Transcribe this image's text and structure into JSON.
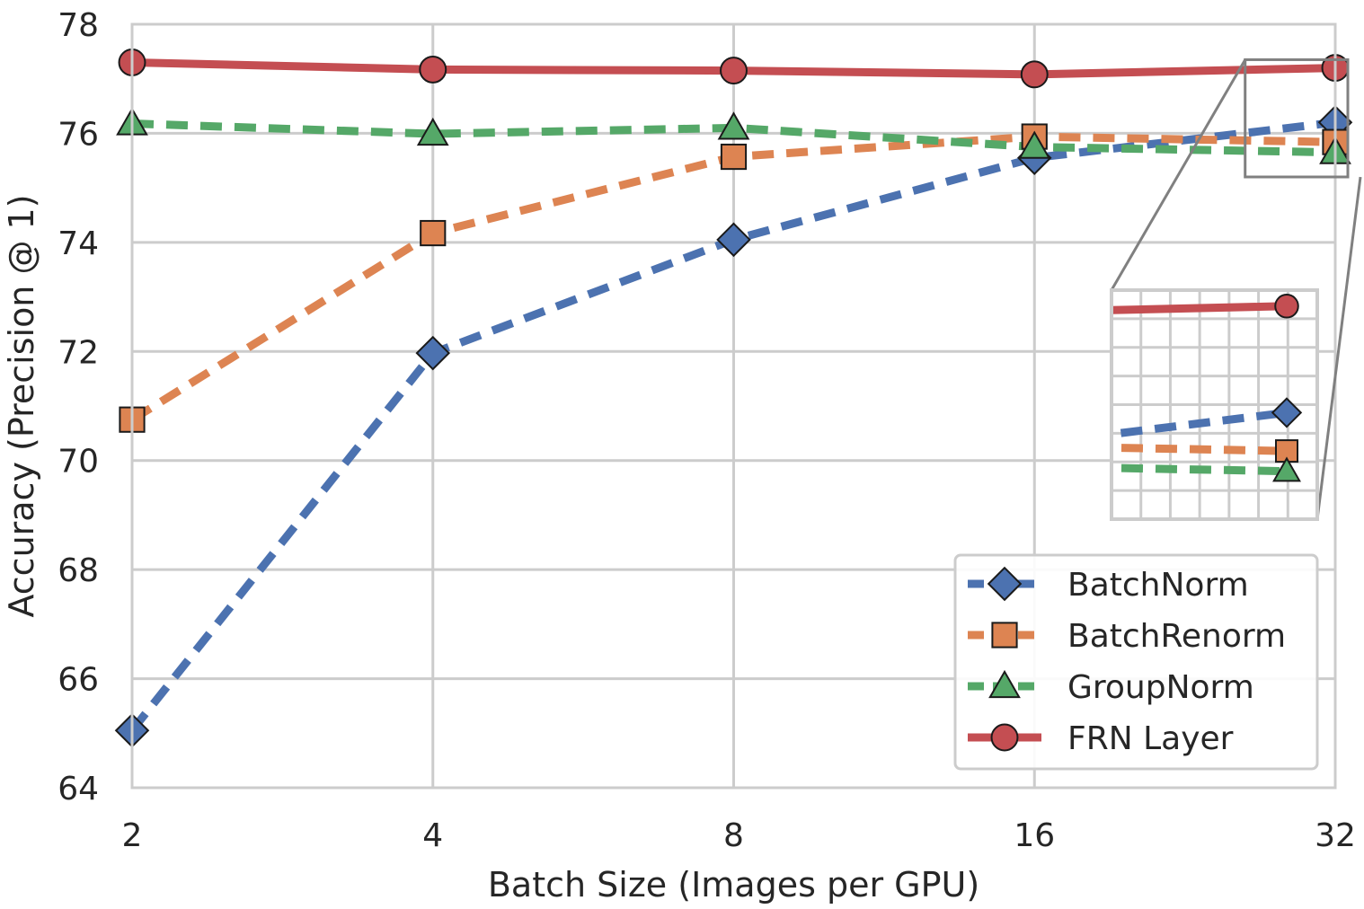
{
  "chart_data": {
    "type": "line",
    "xlabel": "Batch Size (Images per GPU)",
    "ylabel": "Accuracy (Precision @ 1)",
    "x_scale": "log2",
    "x": [
      2,
      4,
      8,
      16,
      32
    ],
    "x_tick_labels": [
      "2",
      "4",
      "8",
      "16",
      "32"
    ],
    "ylim": [
      64,
      78
    ],
    "y_ticks": [
      64,
      66,
      68,
      70,
      72,
      74,
      76,
      78
    ],
    "y_tick_labels": [
      "64",
      "66",
      "68",
      "70",
      "72",
      "74",
      "76",
      "78"
    ],
    "grid": true,
    "legend_position": "lower-right",
    "series": [
      {
        "name": "BatchNorm",
        "values": [
          65.05,
          71.97,
          74.05,
          75.55,
          76.2
        ],
        "color": "#4c72b0",
        "marker": "diamond",
        "line_style": "dashed"
      },
      {
        "name": "BatchRenorm",
        "values": [
          70.75,
          74.17,
          75.57,
          75.94,
          75.84
        ],
        "color": "#dd8452",
        "marker": "square",
        "line_style": "dashed"
      },
      {
        "name": "GroupNorm",
        "values": [
          76.18,
          75.99,
          76.1,
          75.75,
          75.65
        ],
        "color": "#55a868",
        "marker": "triangle",
        "line_style": "dashed"
      },
      {
        "name": "FRN Layer",
        "values": [
          77.3,
          77.17,
          77.15,
          77.08,
          77.2
        ],
        "color": "#c44e52",
        "marker": "circle",
        "line_style": "solid"
      }
    ],
    "inset": {
      "zoom_region": {
        "xlim": [
          26,
          32
        ],
        "ylim": [
          75.2,
          77.35
        ]
      },
      "grid": true
    }
  }
}
